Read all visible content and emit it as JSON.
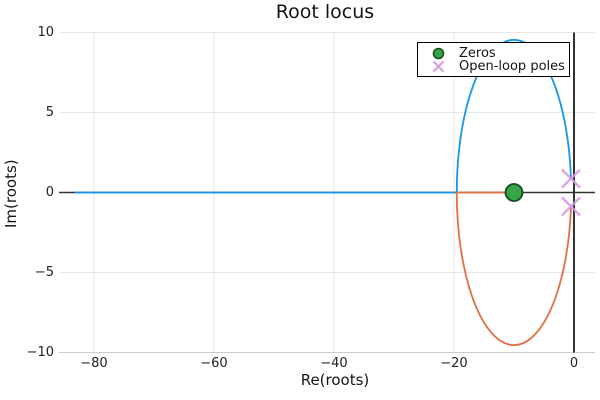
{
  "title": "Root locus",
  "axes": {
    "x_label": "Re(roots)",
    "y_label": "Im(roots)",
    "x_ticks": [
      "−80",
      "−60",
      "−40",
      "−20",
      "0"
    ],
    "y_ticks": [
      "10",
      "5",
      "0",
      "−5",
      "−10"
    ]
  },
  "legend": {
    "items": [
      {
        "label": "Zeros",
        "marker": "circle-icon"
      },
      {
        "label": "Open-loop poles",
        "marker": "x-icon"
      }
    ]
  },
  "colors": {
    "branch1": "#1496eb",
    "branch2": "#e26e46",
    "zero_fill": "#36a548",
    "zero_stroke": "#174a20",
    "pole": "#d49be0",
    "zero_line": "#333333",
    "grid": "#e7e7e7",
    "text": "#141414"
  },
  "chart_data": {
    "type": "line",
    "title": "Root locus",
    "xlabel": "Re(roots)",
    "ylabel": "Im(roots)",
    "xlim": [
      -85.83,
      3.5
    ],
    "ylim": [
      -10,
      10
    ],
    "x_grid": [
      -80,
      -60,
      -40,
      -20,
      0
    ],
    "y_grid": [
      10,
      5,
      0,
      -5,
      -10
    ],
    "grid": true,
    "legend_position": "top-right-inside",
    "zeros": [
      {
        "re": -10,
        "im": 0
      }
    ],
    "poles": [
      {
        "re": -0.5,
        "im": 0.87
      },
      {
        "re": -0.5,
        "im": -0.87
      }
    ],
    "locus": {
      "description": "two branches: circle of radius 9.54 centered at the zero (-10,0) through the complex poles, plus real-axis segments",
      "circle_center": [
        -10,
        0
      ],
      "circle_radius": 9.54,
      "break_in_point": -19.54,
      "real_axis_min": -83.2
    },
    "series": [
      {
        "name": "branch-1 (upper arc then real axis to -inf)",
        "color": "#1496eb",
        "x": [
          -0.5,
          -2,
          -4,
          -6,
          -8,
          -10,
          -12,
          -14,
          -16,
          -18,
          -19.54,
          -30,
          -50,
          -70,
          -83.2
        ],
        "y": [
          0.87,
          5.2,
          7.42,
          8.66,
          9.33,
          9.54,
          9.33,
          8.66,
          7.42,
          5.2,
          0,
          0,
          0,
          0,
          0
        ]
      },
      {
        "name": "branch-2 (lower arc then real axis to zero)",
        "color": "#e26e46",
        "x": [
          -0.5,
          -2,
          -4,
          -6,
          -8,
          -10,
          -12,
          -14,
          -16,
          -18,
          -19.54,
          -15,
          -10
        ],
        "y": [
          -0.87,
          -5.2,
          -7.42,
          -8.66,
          -9.33,
          -9.54,
          -9.33,
          -8.66,
          -7.42,
          -5.2,
          0,
          0,
          0
        ]
      }
    ]
  }
}
